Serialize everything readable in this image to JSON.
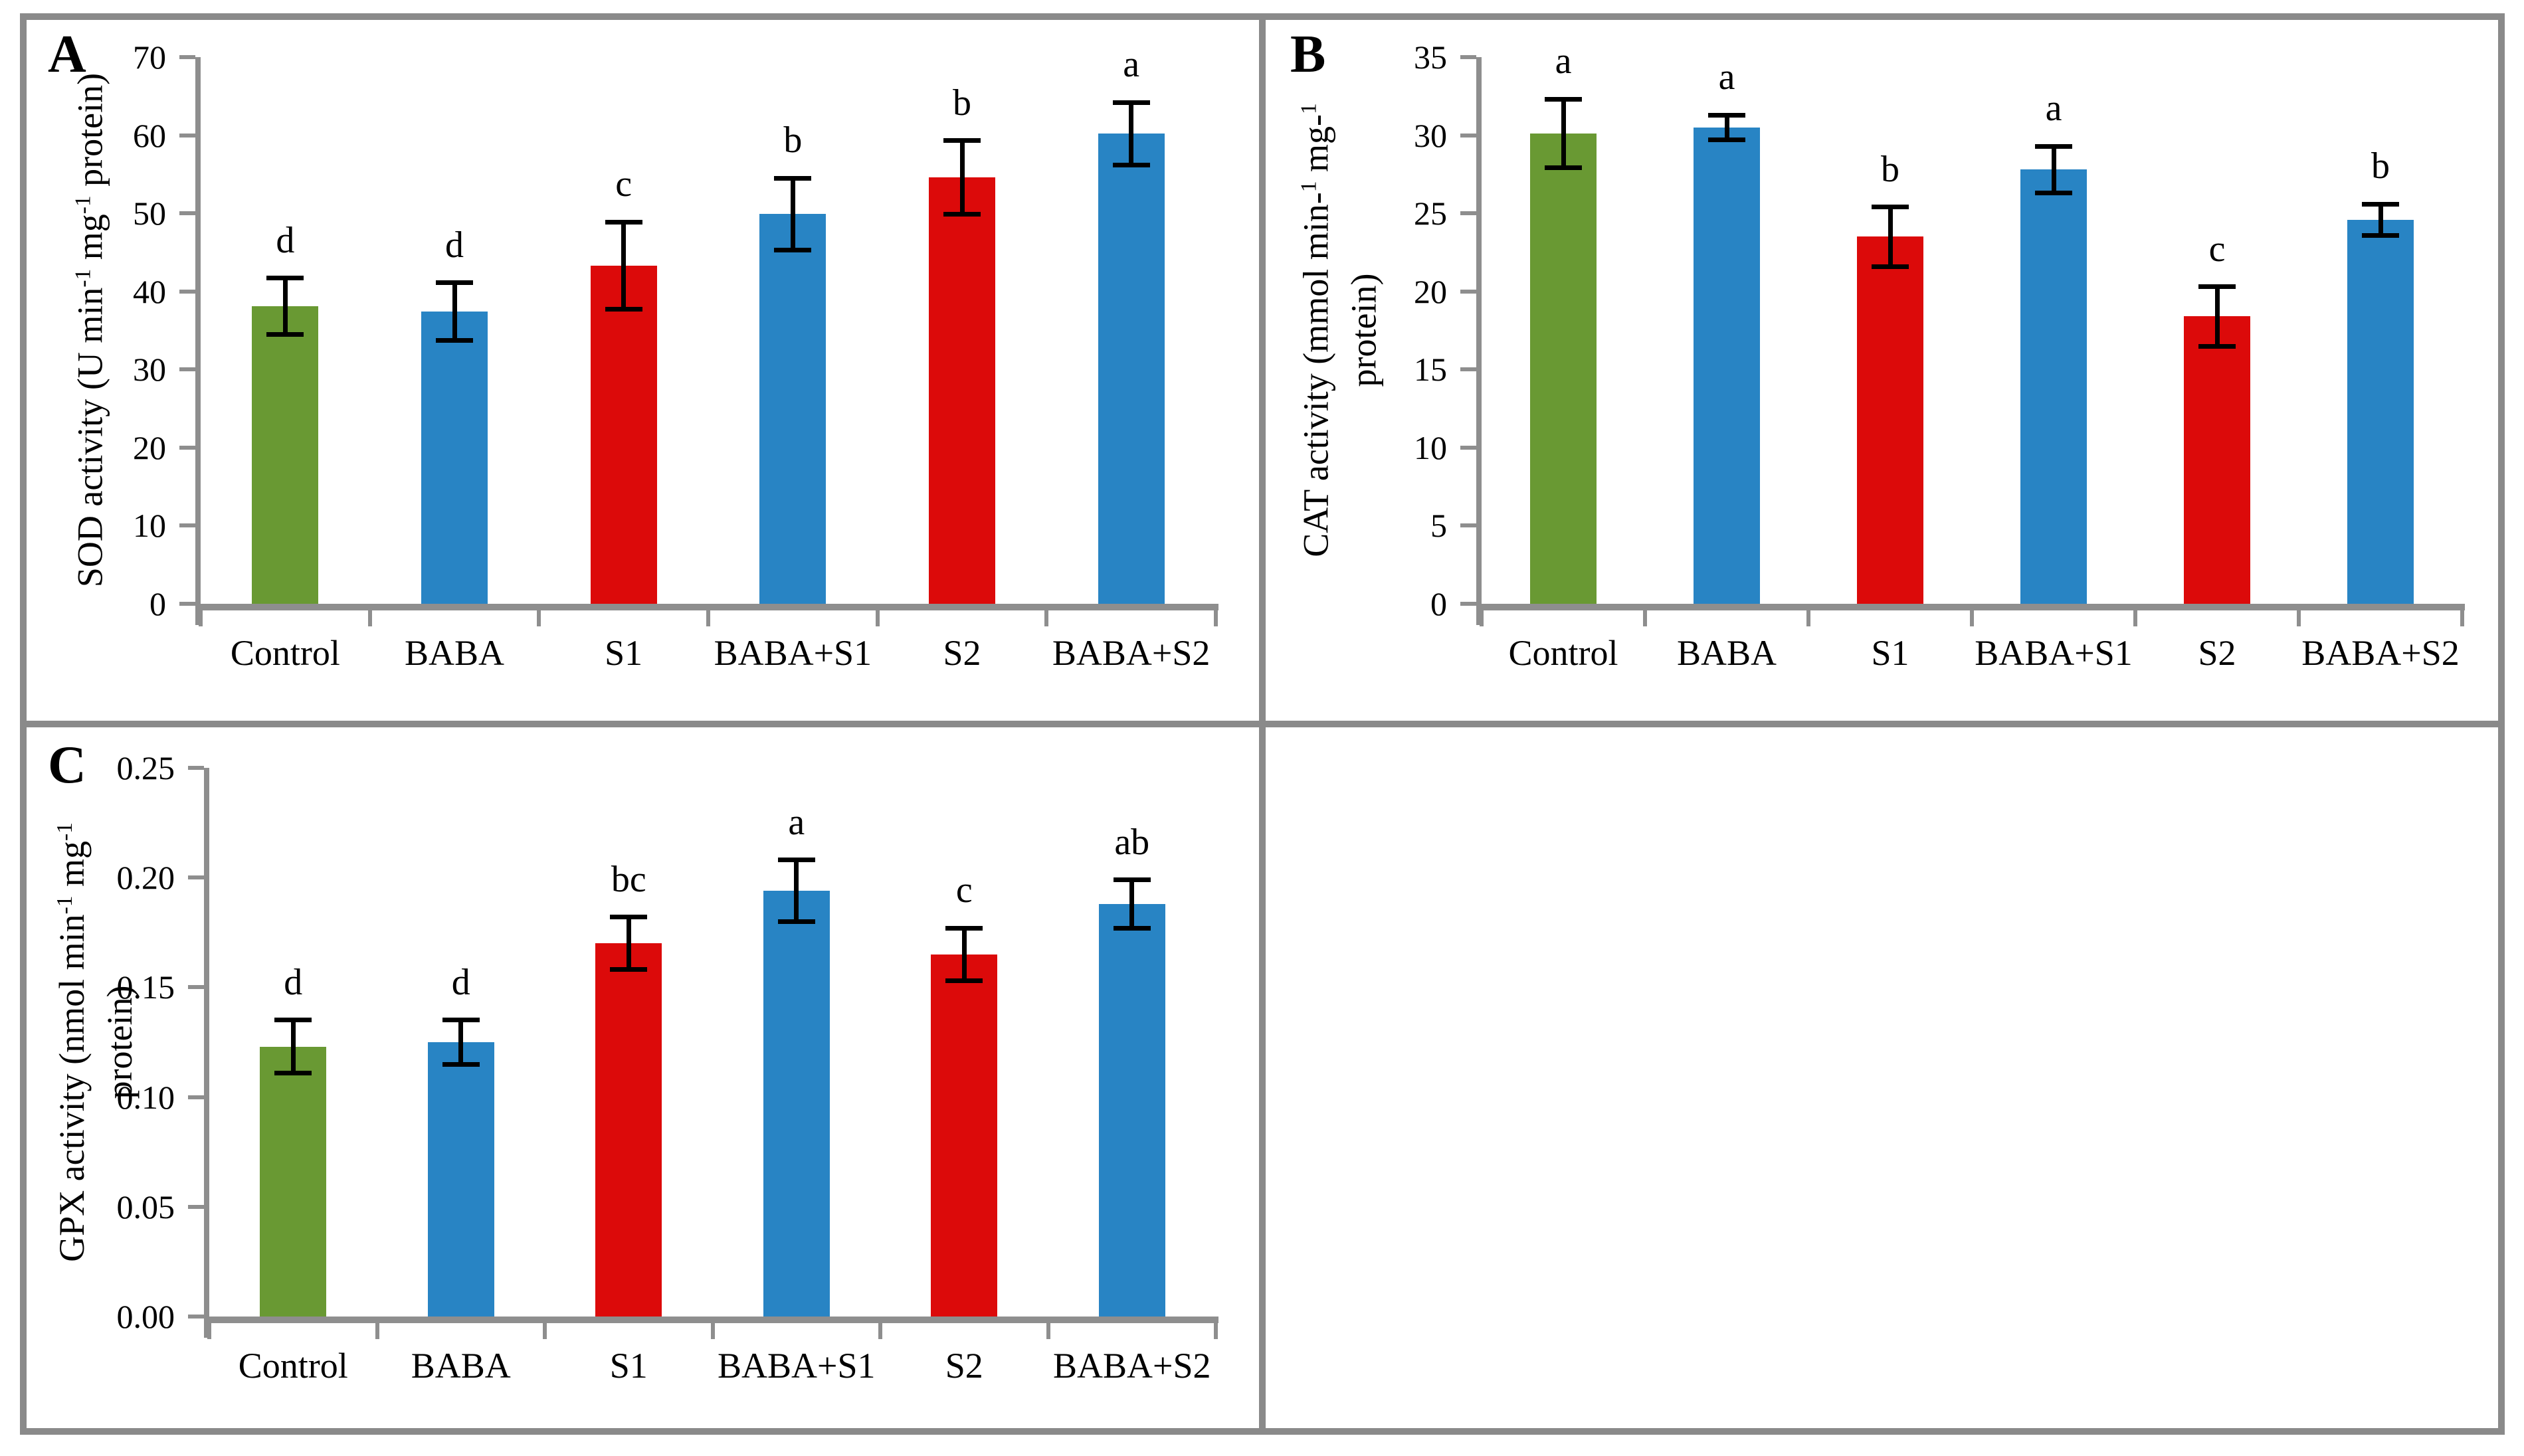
{
  "palette": {
    "green": "#699933",
    "blue": "#2884C4",
    "red": "#DC0A0A",
    "axis": "#8E8E8E",
    "border": "#8A8A8A",
    "error_bar": "#000000",
    "text": "#000000"
  },
  "figure": {
    "panel_letters": [
      "A",
      "B",
      "C"
    ]
  },
  "chart_data": [
    {
      "type": "bar",
      "panel": "A",
      "panel_letter": "A",
      "ylabel": "SOD activity (U min-1 mg-1 protein)",
      "ylabel_lines": [
        [
          {
            "t": "SOD activity (U min"
          },
          {
            "sup": "-1"
          },
          {
            "t": " mg"
          },
          {
            "sup": "-1"
          },
          {
            "t": " protein)"
          }
        ]
      ],
      "xlabel": "",
      "categories": [
        "Control",
        "BABA",
        "S1",
        "BABA+S1",
        "S2",
        "BABA+S2"
      ],
      "values": [
        38.1,
        37.4,
        43.3,
        49.9,
        54.6,
        60.2
      ],
      "errors": [
        3.6,
        3.7,
        5.6,
        4.6,
        4.7,
        4.0
      ],
      "sig_letters": [
        "d",
        "d",
        "c",
        "b",
        "b",
        "a"
      ],
      "bar_colors": [
        "green",
        "blue",
        "red",
        "blue",
        "red",
        "blue"
      ],
      "ylim": [
        0,
        70
      ],
      "ytick_step": 10,
      "ytick_decimals": 0,
      "ytick_labels": [
        "0",
        "10",
        "20",
        "30",
        "40",
        "50",
        "60",
        "70"
      ],
      "grid": false,
      "legend": false,
      "error_bars": true
    },
    {
      "type": "bar",
      "panel": "B",
      "panel_letter": "B",
      "ylabel": "CAT activity (mmol min-1 mg-1 protein)",
      "ylabel_lines": [
        [
          {
            "t": "CAT activity (mmol min-"
          },
          {
            "sup": "1"
          },
          {
            "t": " mg-"
          },
          {
            "sup": "1"
          }
        ],
        [
          {
            "t": "protein)"
          }
        ]
      ],
      "xlabel": "",
      "categories": [
        "Control",
        "BABA",
        "S1",
        "BABA+S1",
        "S2",
        "BABA+S2"
      ],
      "values": [
        30.1,
        30.5,
        23.5,
        27.8,
        18.4,
        24.6
      ],
      "errors": [
        2.2,
        0.8,
        1.9,
        1.5,
        1.9,
        1.0
      ],
      "sig_letters": [
        "a",
        "a",
        "b",
        "a",
        "c",
        "b"
      ],
      "bar_colors": [
        "green",
        "blue",
        "red",
        "blue",
        "red",
        "blue"
      ],
      "ylim": [
        0,
        35
      ],
      "ytick_step": 5,
      "ytick_decimals": 0,
      "ytick_labels": [
        "0",
        "5",
        "10",
        "15",
        "20",
        "25",
        "30",
        "35"
      ],
      "grid": false,
      "legend": false,
      "error_bars": true
    },
    {
      "type": "bar",
      "panel": "C",
      "panel_letter": "C",
      "ylabel": "GPX activity (nmol min-1 mg-1 protein)",
      "ylabel_lines": [
        [
          {
            "t": "GPX activity (nmol min"
          },
          {
            "sup": "-1"
          },
          {
            "t": " mg"
          },
          {
            "sup": "-1"
          }
        ],
        [
          {
            "t": "protein)"
          }
        ]
      ],
      "xlabel": "",
      "categories": [
        "Control",
        "BABA",
        "S1",
        "BABA+S1",
        "S2",
        "BABA+S2"
      ],
      "values": [
        0.123,
        0.125,
        0.17,
        0.194,
        0.165,
        0.188
      ],
      "errors": [
        0.012,
        0.01,
        0.012,
        0.014,
        0.012,
        0.011
      ],
      "sig_letters": [
        "d",
        "d",
        "bc",
        "a",
        "c",
        "ab"
      ],
      "bar_colors": [
        "green",
        "blue",
        "red",
        "blue",
        "red",
        "blue"
      ],
      "ylim": [
        0,
        0.25
      ],
      "ytick_step": 0.05,
      "ytick_decimals": 2,
      "ytick_labels": [
        "0.00",
        "0.05",
        "0.10",
        "0.15",
        "0.20",
        "0.25"
      ],
      "grid": false,
      "legend": false,
      "error_bars": true
    }
  ]
}
